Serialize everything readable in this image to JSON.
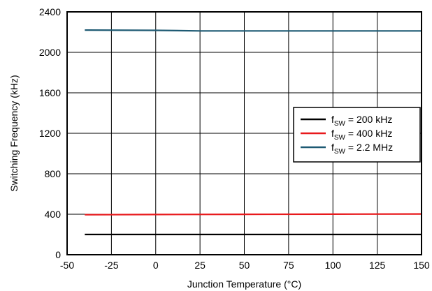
{
  "chart_data": {
    "type": "line",
    "xlabel": "Junction Temperature (°C)",
    "ylabel": "Switching Frequency (kHz)",
    "xlim": [
      -50,
      150
    ],
    "ylim": [
      0,
      2400
    ],
    "x_ticks": [
      "-50",
      "-25",
      "0",
      "25",
      "50",
      "75",
      "100",
      "125",
      "150"
    ],
    "y_ticks": [
      "0",
      "400",
      "800",
      "1200",
      "1600",
      "2000",
      "2400"
    ],
    "grid": true,
    "legend_position": "right",
    "series": [
      {
        "name": "fSW = 200 kHz",
        "legend": {
          "pre": "f",
          "sub": "SW",
          "post": " = 200 kHz"
        },
        "color": "#000000",
        "x": [
          -40,
          0,
          50,
          100,
          150
        ],
        "y": [
          200,
          200,
          200,
          200,
          200
        ]
      },
      {
        "name": "fSW = 400 kHz",
        "legend": {
          "pre": "f",
          "sub": "SW",
          "post": " = 400 kHz"
        },
        "color": "#e8191c",
        "x": [
          -40,
          0,
          50,
          100,
          150
        ],
        "y": [
          395,
          397,
          399,
          401,
          403
        ]
      },
      {
        "name": "fSW = 2.2 MHz",
        "legend": {
          "pre": "f",
          "sub": "SW",
          "post": " = 2.2 MHz"
        },
        "color": "#1e5a73",
        "x": [
          -40,
          0,
          25,
          50,
          100,
          150
        ],
        "y": [
          2220,
          2217,
          2212,
          2212,
          2212,
          2212
        ]
      }
    ]
  }
}
